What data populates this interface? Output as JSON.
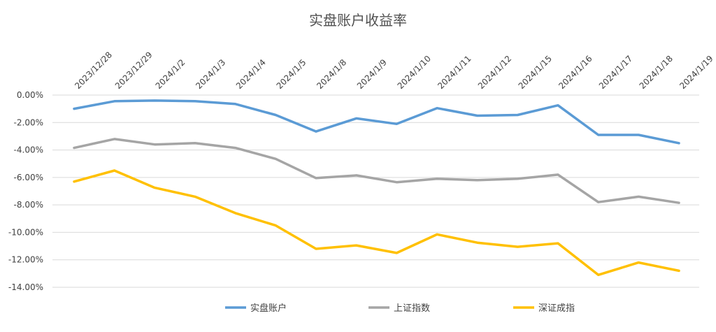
{
  "chart_data": {
    "type": "line",
    "title": "实盘账户收益率",
    "xlabel": "",
    "ylabel": "",
    "categories": [
      "2023/12/28",
      "2023/12/29",
      "2024/1/2",
      "2024/1/3",
      "2024/1/4",
      "2024/1/5",
      "2024/1/8",
      "2024/1/9",
      "2024/1/10",
      "2024/1/11",
      "2024/1/12",
      "2024/1/15",
      "2024/1/16",
      "2024/1/17",
      "2024/1/18",
      "2024/1/19"
    ],
    "ylim": [
      -14,
      0
    ],
    "yticks": [
      "0.00%",
      "-2.00%",
      "-4.00%",
      "-6.00%",
      "-8.00%",
      "-10.00%",
      "-12.00%",
      "-14.00%"
    ],
    "grid": "horizontal",
    "legend": "bottom",
    "series": [
      {
        "name": "实盘账户",
        "color": "#5B9BD5",
        "values": [
          -1.0,
          -0.45,
          -0.4,
          -0.45,
          -0.65,
          -1.45,
          -2.65,
          -1.7,
          -2.1,
          -0.95,
          -1.5,
          -1.45,
          -0.75,
          -2.9,
          -2.9,
          -3.5
        ]
      },
      {
        "name": "上证指数",
        "color": "#A5A5A5",
        "values": [
          -3.85,
          -3.2,
          -3.6,
          -3.5,
          -3.85,
          -4.65,
          -6.05,
          -5.85,
          -6.35,
          -6.1,
          -6.2,
          -6.1,
          -5.8,
          -7.8,
          -7.4,
          -7.85
        ]
      },
      {
        "name": "深证成指",
        "color": "#FFC000",
        "values": [
          -6.3,
          -5.5,
          -6.75,
          -7.4,
          -8.6,
          -9.5,
          -11.2,
          -10.95,
          -11.5,
          -10.15,
          -10.75,
          -11.05,
          -10.8,
          -13.1,
          -12.2,
          -12.8
        ]
      }
    ]
  }
}
